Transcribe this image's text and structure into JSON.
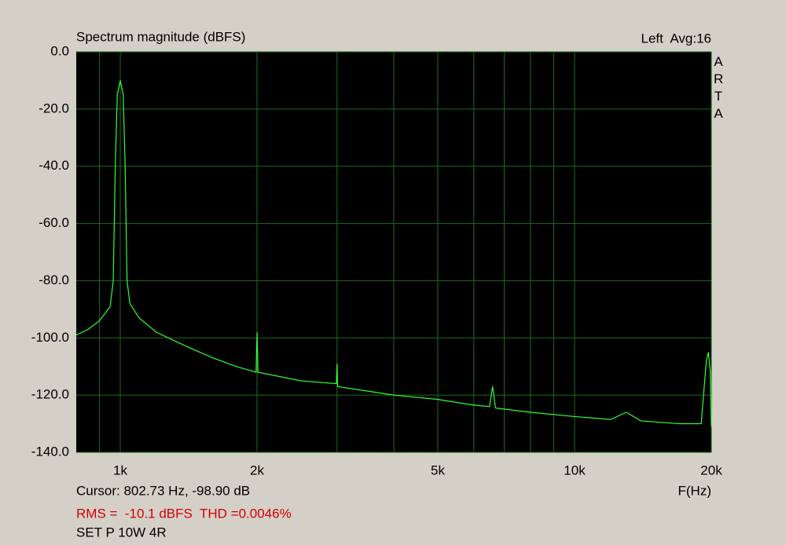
{
  "chart_data": {
    "type": "line",
    "title": "Spectrum magnitude (dBFS)",
    "channel_info": "Left  Avg:16",
    "brand": "ARTA",
    "x_label": "F(Hz)",
    "cursor": "Cursor: 802.73 Hz, -98.90 dB",
    "measurement": "RMS =  -10.1 dBFS  THD =0.0046%",
    "note": "SET P 10W 4R",
    "x_log": true,
    "grid": true,
    "color": "#33ff33",
    "x": [
      800,
      850,
      900,
      950,
      965,
      975,
      985,
      1000,
      1015,
      1025,
      1035,
      1050,
      1100,
      1200,
      1400,
      1600,
      1800,
      1990,
      2000,
      2010,
      2500,
      2990,
      3000,
      3010,
      4000,
      5000,
      6000,
      6500,
      6600,
      6700,
      8000,
      10000,
      12000,
      13000,
      14000,
      17000,
      19000,
      19500,
      19700,
      19900,
      20000
    ],
    "values": [
      -99,
      -97,
      -94,
      -89,
      -80,
      -40,
      -15,
      -10,
      -15,
      -40,
      -80,
      -88,
      -93,
      -98,
      -103,
      -107,
      -110,
      -112,
      -98,
      -112,
      -115,
      -116,
      -109,
      -117,
      -120,
      -121.5,
      -123.5,
      -124,
      -117,
      -124.5,
      -126,
      -127.5,
      -128.5,
      -126,
      -129,
      -130,
      -130,
      -108,
      -105,
      -112,
      -131
    ],
    "xlim": [
      800,
      20000
    ],
    "xticks": [
      {
        "value": 1000,
        "label": "1k"
      },
      {
        "value": 2000,
        "label": "2k"
      },
      {
        "value": 5000,
        "label": "5k"
      },
      {
        "value": 10000,
        "label": "10k"
      },
      {
        "value": 20000,
        "label": "20k"
      }
    ],
    "xminor": [
      900,
      3000,
      4000,
      6000,
      7000,
      8000,
      9000
    ],
    "ylim": [
      -140,
      0
    ],
    "yticks": [
      {
        "value": 0,
        "label": "0.0"
      },
      {
        "value": -20,
        "label": "-20.0"
      },
      {
        "value": -40,
        "label": "-40.0"
      },
      {
        "value": -60,
        "label": "-60.0"
      },
      {
        "value": -80,
        "label": "-80.0"
      },
      {
        "value": -100,
        "label": "-100.0"
      },
      {
        "value": -120,
        "label": "-120.0"
      },
      {
        "value": -140,
        "label": "-140.0"
      }
    ]
  }
}
